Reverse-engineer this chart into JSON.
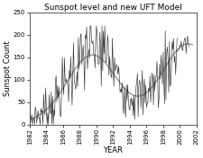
{
  "title": "Sunspot level and new UFT Model",
  "xlabel": "YEAR",
  "ylabel": "Sunspot Count",
  "xlim": [
    1982,
    2002
  ],
  "ylim": [
    0,
    250
  ],
  "xticks": [
    1982,
    1984,
    1986,
    1988,
    1990,
    1992,
    1994,
    1996,
    1998,
    2000,
    2002
  ],
  "yticks": [
    0,
    50,
    100,
    150,
    200,
    250
  ],
  "data_color": "#333333",
  "model_color": "#999999",
  "background": "#ffffff",
  "title_fontsize": 6.5,
  "label_fontsize": 6,
  "tick_fontsize": 5
}
